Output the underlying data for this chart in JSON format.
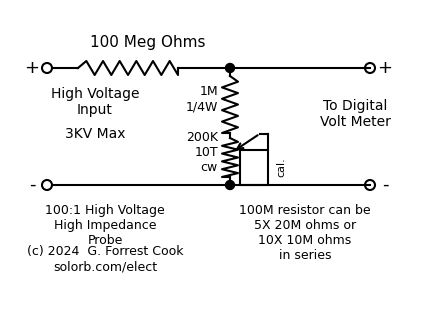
{
  "bg_color": "#ffffff",
  "line_color": "#000000",
  "title_label": "100 Meg Ohms",
  "left_plus": "+",
  "left_minus": "-",
  "right_plus": "+",
  "right_minus": "-",
  "label_hv1": "High Voltage",
  "label_hv2": "Input",
  "label_hv3": "3KV Max",
  "label_to_meter": "To Digital\nVolt Meter",
  "label_r1": "1M\n1/4W",
  "label_r2": "200K\n10T\ncw",
  "label_cal": "cal.",
  "label_probe": "100:1 High Voltage\nHigh Impedance\nProbe",
  "label_note": "100M resistor can be\n5X 20M ohms or\n10X 10M ohms\nin series",
  "label_copy1": "(c) 2024  G. Forrest Cook",
  "label_copy2": "solorb.com/elect",
  "fig_width": 4.27,
  "fig_height": 3.32,
  "dpi": 100
}
